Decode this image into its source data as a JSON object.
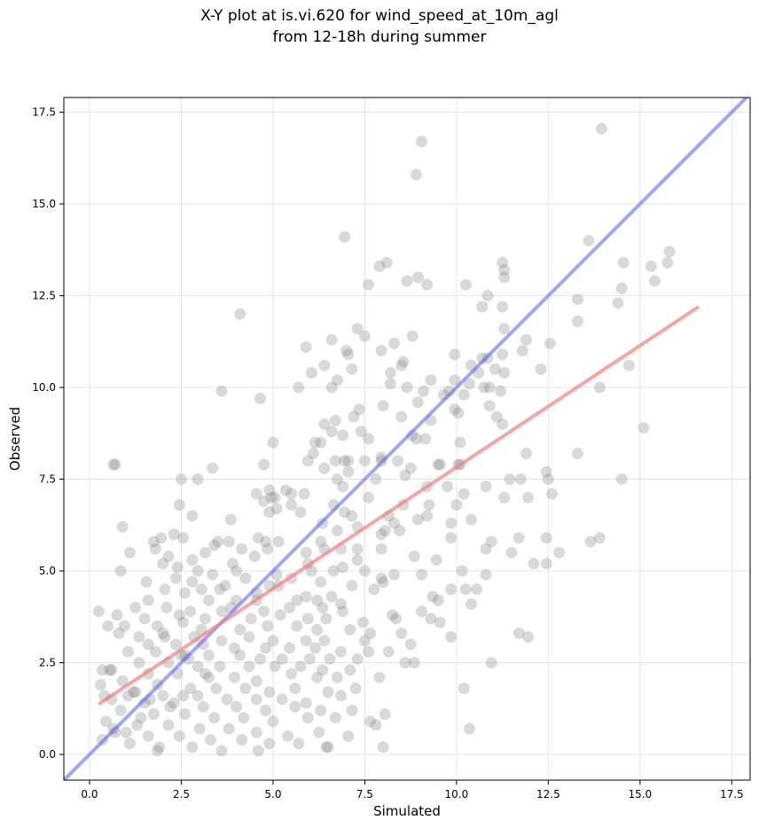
{
  "title_line1": "X-Y plot at is.vi.620 for wind_speed_at_10m_agl",
  "title_line2": "from 12-18h during summer",
  "chart_data": {
    "type": "scatter",
    "xlabel": "Simulated",
    "ylabel": "Observed",
    "xlim": [
      -0.7,
      18.0
    ],
    "ylim": [
      -0.7,
      17.9
    ],
    "xticks": [
      "0.0",
      "2.5",
      "5.0",
      "7.5",
      "10.0",
      "12.5",
      "15.0",
      "17.5"
    ],
    "yticks": [
      "0.0",
      "2.5",
      "5.0",
      "7.5",
      "10.0",
      "12.5",
      "15.0",
      "17.5"
    ],
    "xtick_values": [
      0,
      2.5,
      5,
      7.5,
      10,
      12.5,
      15,
      17.5
    ],
    "ytick_values": [
      0,
      2.5,
      5,
      7.5,
      10,
      12.5,
      15,
      17.5
    ],
    "grid": true,
    "point_color": "#808080",
    "identity_line": {
      "color": "#6666ff",
      "x": [
        -0.7,
        18.0
      ],
      "y": [
        -0.7,
        18.0
      ]
    },
    "fit_line": {
      "color": "#f08080",
      "x": [
        0.25,
        16.6
      ],
      "y": [
        1.37,
        12.2
      ]
    },
    "points": [
      [
        13.95,
        17.05
      ],
      [
        9.05,
        16.7
      ],
      [
        8.9,
        15.8
      ],
      [
        6.95,
        14.1
      ],
      [
        13.6,
        14.0
      ],
      [
        15.8,
        13.7
      ],
      [
        8.1,
        13.4
      ],
      [
        11.25,
        13.4
      ],
      [
        14.55,
        13.4
      ],
      [
        15.75,
        13.4
      ],
      [
        7.9,
        13.3
      ],
      [
        15.3,
        13.3
      ],
      [
        11.3,
        13.2
      ],
      [
        8.95,
        13.0
      ],
      [
        11.3,
        13.0
      ],
      [
        8.65,
        12.9
      ],
      [
        15.4,
        12.9
      ],
      [
        9.2,
        12.8
      ],
      [
        10.25,
        12.8
      ],
      [
        7.6,
        12.8
      ],
      [
        14.5,
        12.7
      ],
      [
        10.85,
        12.5
      ],
      [
        13.3,
        12.4
      ],
      [
        14.4,
        12.3
      ],
      [
        10.7,
        12.2
      ],
      [
        11.25,
        12.2
      ],
      [
        4.1,
        12.0
      ],
      [
        13.3,
        11.8
      ],
      [
        7.3,
        11.6
      ],
      [
        11.3,
        11.6
      ],
      [
        7.5,
        11.4
      ],
      [
        8.8,
        11.4
      ],
      [
        6.6,
        11.3
      ],
      [
        11.9,
        11.3
      ],
      [
        12.55,
        11.2
      ],
      [
        8.3,
        11.2
      ],
      [
        7.0,
        11.0
      ],
      [
        5.9,
        11.1
      ],
      [
        11.8,
        11.0
      ],
      [
        7.95,
        11.0
      ],
      [
        11.25,
        10.9
      ],
      [
        9.95,
        10.9
      ],
      [
        7.05,
        10.9
      ],
      [
        10.85,
        10.8
      ],
      [
        10.7,
        10.8
      ],
      [
        8.55,
        10.7
      ],
      [
        8.5,
        10.6
      ],
      [
        14.7,
        10.6
      ],
      [
        10.4,
        10.6
      ],
      [
        6.4,
        10.6
      ],
      [
        7.15,
        10.5
      ],
      [
        11.05,
        10.5
      ],
      [
        12.3,
        10.5
      ],
      [
        8.2,
        10.4
      ],
      [
        10.6,
        10.4
      ],
      [
        11.3,
        10.4
      ],
      [
        6.05,
        10.4
      ],
      [
        9.3,
        10.2
      ],
      [
        9.95,
        10.2
      ],
      [
        6.75,
        10.2
      ],
      [
        10.35,
        10.1
      ],
      [
        8.2,
        10.1
      ],
      [
        10.75,
        10.0
      ],
      [
        5.7,
        10.0
      ],
      [
        8.65,
        10.0
      ],
      [
        10.9,
        10.0
      ],
      [
        13.9,
        10.0
      ],
      [
        6.6,
        10.0
      ],
      [
        9.1,
        9.9
      ],
      [
        3.6,
        9.9
      ],
      [
        9.8,
        9.9
      ],
      [
        9.65,
        9.8
      ],
      [
        11.2,
        9.9
      ],
      [
        10.2,
        9.8
      ],
      [
        4.65,
        9.7
      ],
      [
        8.95,
        9.6
      ],
      [
        8.0,
        9.5
      ],
      [
        10.9,
        9.5
      ],
      [
        9.95,
        9.4
      ],
      [
        7.35,
        9.4
      ],
      [
        10.05,
        9.3
      ],
      [
        7.2,
        9.2
      ],
      [
        6.7,
        9.1
      ],
      [
        8.5,
        9.2
      ],
      [
        9.3,
        9.1
      ],
      [
        11.1,
        9.2
      ],
      [
        11.25,
        9.0
      ],
      [
        15.1,
        8.9
      ],
      [
        6.4,
        9.0
      ],
      [
        7.6,
        8.6
      ],
      [
        6.6,
        8.8
      ],
      [
        6.9,
        8.7
      ],
      [
        8.8,
        8.7
      ],
      [
        8.9,
        8.6
      ],
      [
        9.15,
        8.6
      ],
      [
        7.4,
        8.8
      ],
      [
        6.15,
        8.5
      ],
      [
        6.3,
        8.5
      ],
      [
        10.1,
        8.5
      ],
      [
        5.0,
        8.5
      ],
      [
        13.3,
        8.2
      ],
      [
        6.1,
        8.2
      ],
      [
        5.95,
        8.0
      ],
      [
        7.5,
        8.0
      ],
      [
        6.95,
        8.0
      ],
      [
        6.7,
        8.0
      ],
      [
        7.05,
        8.0
      ],
      [
        7.95,
        8.0
      ],
      [
        8.4,
        8.0
      ],
      [
        10.05,
        7.9
      ],
      [
        8.75,
        7.8
      ],
      [
        7.95,
        8.1
      ],
      [
        11.9,
        8.2
      ],
      [
        10.1,
        7.9
      ],
      [
        6.4,
        7.8
      ],
      [
        0.7,
        7.9
      ],
      [
        0.65,
        7.9
      ],
      [
        3.35,
        7.8
      ],
      [
        4.75,
        7.9
      ],
      [
        2.5,
        7.5
      ],
      [
        2.95,
        7.5
      ],
      [
        12.45,
        7.7
      ],
      [
        14.5,
        7.5
      ],
      [
        7.05,
        7.7
      ],
      [
        8.6,
        7.6
      ],
      [
        9.5,
        7.9
      ],
      [
        12.5,
        7.5
      ],
      [
        11.75,
        7.5
      ],
      [
        6.75,
        7.5
      ],
      [
        11.45,
        7.5
      ],
      [
        7.8,
        7.5
      ],
      [
        9.55,
        7.9
      ],
      [
        5.5,
        7.1
      ],
      [
        5.35,
        7.2
      ],
      [
        4.9,
        7.2
      ],
      [
        4.55,
        7.1
      ],
      [
        5.05,
        7.0
      ],
      [
        9.2,
        7.3
      ],
      [
        10.8,
        7.3
      ],
      [
        9.75,
        7.3
      ],
      [
        11.95,
        7.0
      ],
      [
        6.9,
        7.3
      ],
      [
        11.3,
        7.0
      ],
      [
        5.85,
        7.1
      ],
      [
        4.95,
        7.0
      ],
      [
        7.6,
        7.0
      ],
      [
        10.2,
        7.1
      ],
      [
        12.6,
        7.1
      ],
      [
        4.75,
        6.9
      ],
      [
        5.5,
        6.8
      ],
      [
        6.65,
        6.8
      ],
      [
        8.55,
        6.8
      ],
      [
        9.25,
        6.8
      ],
      [
        10.0,
        6.8
      ],
      [
        2.45,
        6.8
      ],
      [
        4.9,
        6.6
      ],
      [
        5.75,
        6.6
      ],
      [
        5.1,
        6.7
      ],
      [
        6.95,
        6.6
      ],
      [
        7.15,
        6.5
      ],
      [
        8.15,
        6.5
      ],
      [
        9.2,
        6.5
      ],
      [
        2.8,
        6.5
      ],
      [
        8.95,
        6.4
      ],
      [
        10.4,
        6.4
      ],
      [
        9.85,
        6.3
      ],
      [
        3.85,
        6.4
      ],
      [
        0.9,
        6.2
      ],
      [
        8.3,
        6.3
      ],
      [
        6.35,
        6.3
      ],
      [
        7.3,
        6.2
      ],
      [
        8.45,
        6.1
      ],
      [
        6.75,
        6.1
      ],
      [
        2.55,
        5.9
      ],
      [
        1.95,
        5.9
      ],
      [
        1.75,
        5.8
      ],
      [
        3.5,
        5.8
      ],
      [
        4.6,
        5.9
      ],
      [
        7.95,
        6.0
      ],
      [
        8.05,
        6.1
      ],
      [
        11.7,
        5.9
      ],
      [
        12.45,
        5.9
      ],
      [
        13.9,
        5.9
      ],
      [
        13.65,
        5.8
      ],
      [
        9.85,
        5.9
      ],
      [
        10.95,
        5.8
      ],
      [
        2.3,
        6.0
      ],
      [
        6.3,
        5.8
      ],
      [
        5.15,
        5.8
      ],
      [
        4.8,
        5.8
      ],
      [
        4.15,
        5.6
      ],
      [
        3.8,
        5.8
      ],
      [
        1.8,
        5.6
      ],
      [
        2.15,
        5.4
      ],
      [
        3.4,
        5.7
      ],
      [
        3.15,
        5.5
      ],
      [
        4.85,
        5.6
      ],
      [
        6.4,
        5.6
      ],
      [
        6.85,
        5.6
      ],
      [
        7.3,
        5.6
      ],
      [
        7.95,
        5.6
      ],
      [
        10.8,
        5.6
      ],
      [
        11.5,
        5.5
      ],
      [
        12.8,
        5.5
      ],
      [
        8.85,
        5.4
      ],
      [
        5.9,
        5.5
      ],
      [
        1.1,
        5.5
      ],
      [
        2.8,
        5.3
      ],
      [
        2.0,
        5.2
      ],
      [
        2.4,
        5.1
      ],
      [
        3.9,
        5.2
      ],
      [
        4.5,
        5.4
      ],
      [
        5.95,
        5.2
      ],
      [
        6.9,
        5.1
      ],
      [
        7.3,
        5.3
      ],
      [
        9.45,
        5.3
      ],
      [
        12.1,
        5.2
      ],
      [
        12.45,
        5.2
      ],
      [
        0.85,
        5.0
      ],
      [
        2.95,
        5.0
      ],
      [
        3.35,
        4.9
      ],
      [
        4.0,
        5.0
      ],
      [
        5.1,
        4.9
      ],
      [
        5.5,
        4.8
      ],
      [
        6.05,
        5.0
      ],
      [
        6.65,
        5.0
      ],
      [
        7.5,
        5.0
      ],
      [
        7.95,
        4.8
      ],
      [
        10.15,
        5.0
      ],
      [
        10.8,
        4.9
      ],
      [
        2.35,
        4.8
      ],
      [
        2.8,
        4.7
      ],
      [
        3.7,
        4.6
      ],
      [
        4.25,
        4.8
      ],
      [
        4.9,
        4.6
      ],
      [
        6.3,
        4.7
      ],
      [
        7.15,
        4.6
      ],
      [
        8.3,
        4.9
      ],
      [
        9.05,
        4.9
      ],
      [
        9.85,
        4.5
      ],
      [
        10.55,
        4.5
      ],
      [
        1.55,
        4.7
      ],
      [
        2.05,
        4.5
      ],
      [
        3.05,
        4.5
      ],
      [
        3.55,
        4.5
      ],
      [
        4.55,
        4.4
      ],
      [
        5.15,
        4.6
      ],
      [
        5.9,
        4.3
      ],
      [
        6.6,
        4.3
      ],
      [
        7.75,
        4.5
      ],
      [
        8.0,
        4.7
      ],
      [
        9.5,
        4.2
      ],
      [
        10.25,
        4.5
      ],
      [
        2.6,
        4.4
      ],
      [
        1.6,
        4.2
      ],
      [
        3.25,
        4.2
      ],
      [
        4.0,
        4.2
      ],
      [
        4.55,
        4.2
      ],
      [
        5.65,
        4.2
      ],
      [
        6.2,
        4.2
      ],
      [
        6.85,
        4.1
      ],
      [
        9.35,
        4.3
      ],
      [
        10.4,
        4.1
      ],
      [
        1.25,
        4.0
      ],
      [
        2.1,
        4.0
      ],
      [
        2.75,
        3.9
      ],
      [
        3.85,
        4.0
      ],
      [
        4.75,
        3.9
      ],
      [
        5.45,
        4.0
      ],
      [
        6.35,
        4.0
      ],
      [
        6.9,
        3.9
      ],
      [
        8.25,
        3.8
      ],
      [
        9.05,
        3.9
      ],
      [
        9.3,
        3.7
      ],
      [
        0.25,
        3.9
      ],
      [
        0.75,
        3.8
      ],
      [
        1.5,
        3.7
      ],
      [
        2.45,
        3.8
      ],
      [
        3.15,
        3.7
      ],
      [
        3.6,
        3.9
      ],
      [
        4.4,
        3.7
      ],
      [
        5.2,
        3.8
      ],
      [
        5.95,
        3.7
      ],
      [
        6.45,
        3.7
      ],
      [
        7.45,
        3.6
      ],
      [
        8.35,
        3.7
      ],
      [
        9.55,
        3.6
      ],
      [
        0.95,
        3.5
      ],
      [
        1.85,
        3.5
      ],
      [
        2.55,
        3.6
      ],
      [
        3.05,
        3.4
      ],
      [
        4.1,
        3.4
      ],
      [
        4.85,
        3.5
      ],
      [
        5.65,
        3.5
      ],
      [
        6.2,
        3.4
      ],
      [
        7.1,
        3.4
      ],
      [
        7.65,
        3.3
      ],
      [
        8.5,
        3.3
      ],
      [
        9.85,
        3.2
      ],
      [
        11.7,
        3.3
      ],
      [
        11.95,
        3.2
      ],
      [
        0.5,
        3.5
      ],
      [
        1.35,
        3.2
      ],
      [
        2.05,
        3.2
      ],
      [
        2.85,
        3.2
      ],
      [
        3.6,
        3.1
      ],
      [
        4.35,
        3.2
      ],
      [
        5.0,
        3.1
      ],
      [
        5.9,
        3.1
      ],
      [
        6.4,
        3.1
      ],
      [
        7.5,
        3.1
      ],
      [
        8.75,
        3.0
      ],
      [
        0.8,
        3.3
      ],
      [
        1.6,
        3.0
      ],
      [
        2.35,
        3.0
      ],
      [
        3.1,
        3.0
      ],
      [
        3.95,
        2.9
      ],
      [
        4.8,
        2.9
      ],
      [
        5.45,
        2.9
      ],
      [
        6.15,
        2.9
      ],
      [
        6.85,
        2.8
      ],
      [
        7.6,
        2.8
      ],
      [
        8.15,
        2.8
      ],
      [
        1.05,
        2.8
      ],
      [
        1.8,
        2.8
      ],
      [
        2.5,
        2.7
      ],
      [
        3.25,
        2.7
      ],
      [
        4.1,
        2.7
      ],
      [
        4.65,
        2.6
      ],
      [
        5.25,
        2.6
      ],
      [
        6.0,
        2.6
      ],
      [
        6.55,
        2.6
      ],
      [
        7.3,
        2.6
      ],
      [
        8.85,
        2.5
      ],
      [
        10.95,
        2.5
      ],
      [
        0.35,
        2.3
      ],
      [
        1.35,
        2.5
      ],
      [
        2.15,
        2.5
      ],
      [
        2.95,
        2.4
      ],
      [
        3.55,
        2.4
      ],
      [
        4.35,
        2.4
      ],
      [
        5.05,
        2.4
      ],
      [
        5.75,
        2.4
      ],
      [
        6.35,
        2.3
      ],
      [
        7.1,
        2.3
      ],
      [
        8.6,
        2.5
      ],
      [
        0.6,
        2.3
      ],
      [
        1.6,
        2.2
      ],
      [
        2.4,
        2.2
      ],
      [
        3.25,
        2.1
      ],
      [
        3.95,
        2.1
      ],
      [
        4.55,
        2.0
      ],
      [
        5.5,
        2.2
      ],
      [
        6.2,
        2.1
      ],
      [
        6.75,
        2.1
      ],
      [
        7.9,
        2.1
      ],
      [
        0.9,
        2.0
      ],
      [
        1.85,
        1.9
      ],
      [
        2.75,
        1.8
      ],
      [
        3.45,
        1.8
      ],
      [
        4.25,
        1.8
      ],
      [
        4.9,
        1.7
      ],
      [
        5.6,
        1.8
      ],
      [
        6.5,
        1.7
      ],
      [
        7.25,
        1.8
      ],
      [
        0.3,
        1.9
      ],
      [
        1.25,
        1.7
      ],
      [
        2.0,
        1.6
      ],
      [
        2.95,
        1.6
      ],
      [
        3.75,
        1.5
      ],
      [
        4.55,
        1.5
      ],
      [
        5.25,
        1.5
      ],
      [
        5.9,
        1.4
      ],
      [
        6.85,
        1.6
      ],
      [
        10.2,
        1.8
      ],
      [
        0.6,
        1.5
      ],
      [
        1.5,
        1.4
      ],
      [
        2.3,
        1.4
      ],
      [
        3.1,
        1.3
      ],
      [
        4.0,
        1.3
      ],
      [
        4.8,
        1.2
      ],
      [
        5.6,
        1.3
      ],
      [
        6.3,
        1.2
      ],
      [
        7.15,
        1.2
      ],
      [
        0.85,
        1.2
      ],
      [
        1.75,
        1.1
      ],
      [
        2.6,
        1.1
      ],
      [
        3.4,
        1.0
      ],
      [
        4.2,
        1.0
      ],
      [
        5.0,
        0.9
      ],
      [
        5.95,
        1.0
      ],
      [
        6.7,
        1.0
      ],
      [
        7.65,
        0.9
      ],
      [
        8.05,
        1.1
      ],
      [
        0.45,
        0.9
      ],
      [
        1.3,
        0.8
      ],
      [
        2.15,
        0.8
      ],
      [
        3.0,
        0.7
      ],
      [
        3.8,
        0.7
      ],
      [
        4.55,
        0.6
      ],
      [
        5.4,
        0.5
      ],
      [
        6.25,
        0.6
      ],
      [
        7.05,
        0.5
      ],
      [
        10.35,
        0.7
      ],
      [
        0.7,
        0.6
      ],
      [
        1.6,
        0.5
      ],
      [
        2.45,
        0.5
      ],
      [
        3.3,
        0.4
      ],
      [
        4.15,
        0.4
      ],
      [
        4.9,
        0.3
      ],
      [
        5.7,
        0.3
      ],
      [
        6.5,
        0.2
      ],
      [
        7.8,
        0.8
      ],
      [
        8.0,
        0.2
      ],
      [
        0.35,
        0.4
      ],
      [
        1.1,
        0.3
      ],
      [
        1.9,
        0.2
      ],
      [
        2.8,
        0.2
      ],
      [
        3.6,
        0.1
      ],
      [
        4.6,
        0.1
      ],
      [
        6.45,
        0.2
      ],
      [
        0.65,
        0.7
      ],
      [
        1.0,
        0.6
      ],
      [
        1.4,
        1.0
      ],
      [
        1.85,
        0.1
      ],
      [
        0.4,
        1.6
      ],
      [
        0.55,
        2.3
      ],
      [
        1.05,
        1.6
      ],
      [
        1.65,
        1.5
      ],
      [
        2.2,
        1.3
      ],
      [
        2.7,
        2.6
      ],
      [
        3.15,
        2.2
      ],
      [
        1.2,
        1.7
      ],
      [
        2.6,
        2.7
      ],
      [
        2.0,
        3.3
      ],
      [
        2.55,
        1.6
      ]
    ]
  }
}
